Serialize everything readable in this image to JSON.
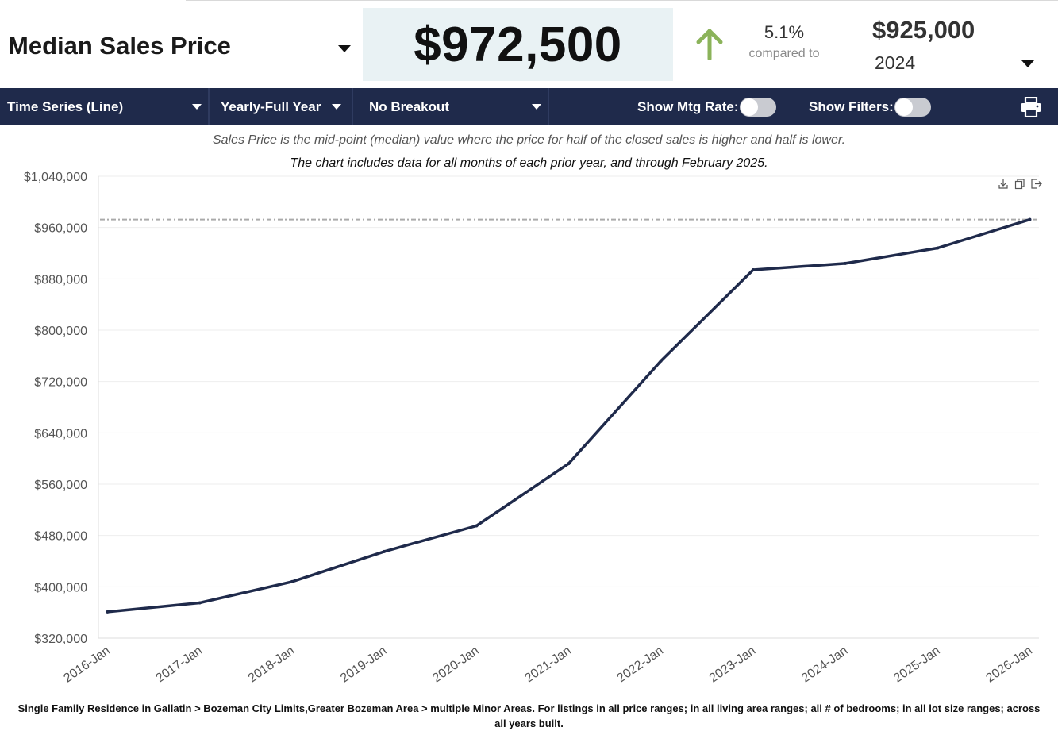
{
  "metric": {
    "title": "Median Sales Price",
    "value": "$972,500"
  },
  "comparison": {
    "percent": "5.1%",
    "label": "compared to",
    "value": "$925,000",
    "year": "2024"
  },
  "toolbar": {
    "chart_type": "Time Series (Line)",
    "period": "Yearly-Full Year",
    "breakout": "No Breakout",
    "mtg_rate_label": "Show Mtg Rate:",
    "filters_label": "Show Filters:"
  },
  "subtitle_1": "Sales Price is the mid-point (median) value where the price for half of the closed sales is higher and half is lower.",
  "subtitle_2": "The chart includes data for all months of each prior year, and through February 2025.",
  "footer": "Single Family Residence in Gallatin > Bozeman City Limits,Greater Bozeman Area > multiple Minor Areas. For listings in all price ranges; in all living area ranges; all # of bedrooms; in all lot size ranges; across all years built.",
  "colors": {
    "line": "#1f2a4b",
    "toolbar": "#1f2a4b",
    "arrow": "#8bb35a",
    "value_box": "#e9f2f4",
    "reference": "#999999"
  },
  "chart_data": {
    "type": "line",
    "title": "",
    "xlabel": "",
    "ylabel": "",
    "categories": [
      "2016-Jan",
      "2017-Jan",
      "2018-Jan",
      "2019-Jan",
      "2020-Jan",
      "2021-Jan",
      "2022-Jan",
      "2023-Jan",
      "2024-Jan",
      "2025-Jan",
      "2026-Jan"
    ],
    "series": [
      {
        "name": "Median Sales Price",
        "values": [
          361000,
          375000,
          408000,
          455000,
          495000,
          592000,
          752000,
          894000,
          904000,
          928000,
          972500
        ]
      }
    ],
    "reference_line": 972500,
    "ylim": [
      320000,
      1040000
    ],
    "yticks": [
      320000,
      400000,
      480000,
      560000,
      640000,
      720000,
      800000,
      880000,
      960000,
      1040000
    ],
    "ytick_labels": [
      "$320,000",
      "$400,000",
      "$480,000",
      "$560,000",
      "$640,000",
      "$720,000",
      "$800,000",
      "$880,000",
      "$960,000",
      "$1,040,000"
    ],
    "grid": true
  }
}
